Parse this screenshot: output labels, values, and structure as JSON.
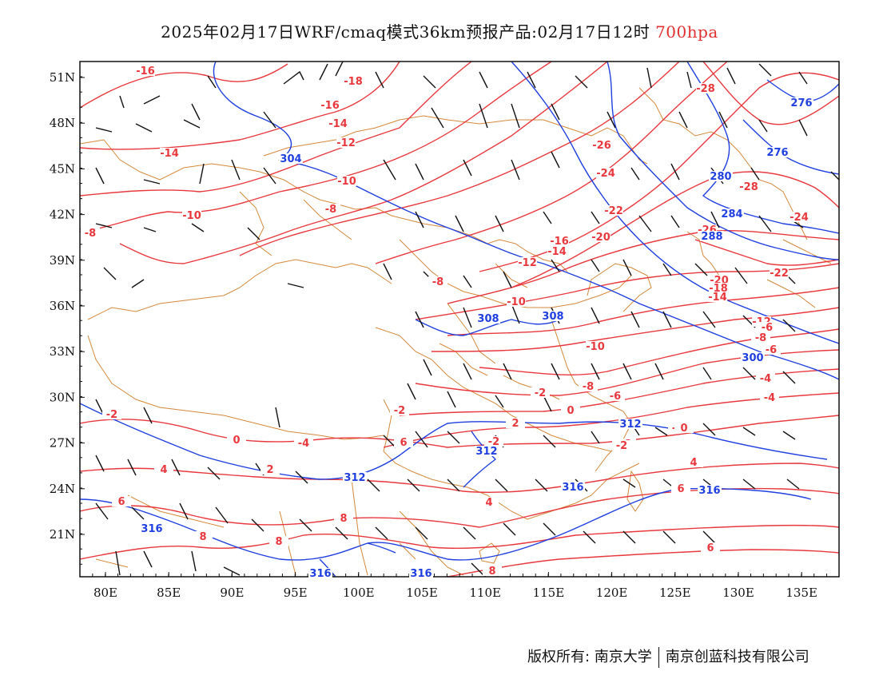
{
  "title": {
    "main": "2025年02月17日WRF/cmaq模式36km预报产品:02月17日12时",
    "level": "700hpa"
  },
  "colors": {
    "temperature": "#e8383d",
    "height": "#1f3fe0",
    "border": "#d4883a",
    "barb": "#111111"
  },
  "axes": {
    "lat_labels": [
      "51N",
      "48N",
      "45N",
      "42N",
      "39N",
      "36N",
      "33N",
      "30N",
      "27N",
      "24N",
      "21N"
    ],
    "lon_labels": [
      "80E",
      "85E",
      "90E",
      "95E",
      "100E",
      "105E",
      "110E",
      "115E",
      "120E",
      "125E",
      "130E",
      "135E"
    ]
  },
  "temperature_labels": [
    "-16",
    "-18",
    "-16",
    "-14",
    "-12",
    "-14",
    "-10",
    "-10",
    "-8",
    "-8",
    "-8",
    "-16",
    "-14",
    "-12",
    "-10",
    "-26",
    "-24",
    "-22",
    "-20",
    "-28",
    "-28",
    "-26",
    "-24",
    "-22",
    "-20",
    "-18",
    "-14",
    "-12",
    "-10",
    "-8",
    "-6",
    "-4",
    "-2",
    "0",
    "2",
    "4",
    "6",
    "8",
    "2",
    "0",
    "-2",
    "-2",
    "-2",
    "-2",
    "0",
    "4",
    "6",
    "8",
    "4",
    "6",
    "8",
    "6",
    "8",
    "-6",
    "-4",
    "-2",
    "-2",
    "-8",
    "-6",
    "-4"
  ],
  "height_labels": [
    "304",
    "308",
    "308",
    "276",
    "276",
    "280",
    "284",
    "288",
    "300",
    "312",
    "312",
    "312",
    "316",
    "316",
    "316",
    "316",
    "316"
  ],
  "footer": {
    "left": "版权所有: 南京大学",
    "right": "南京创蓝科技有限公司"
  }
}
